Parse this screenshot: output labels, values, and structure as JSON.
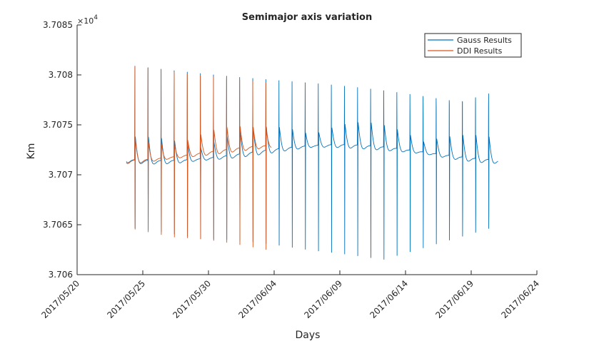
{
  "chart_data": {
    "type": "line",
    "title": "Semimajor axis variation",
    "xlabel": "Days",
    "ylabel": "Km",
    "y_exponent_label": "×10",
    "y_exponent_power": "4",
    "xlim": [
      "2017-05-20",
      "2017-06-24"
    ],
    "ylim": [
      3.706,
      3.7085
    ],
    "x_ticks": [
      {
        "date": "2017-05-20",
        "label": "2017/05/20"
      },
      {
        "date": "2017-05-25",
        "label": "2017/05/25"
      },
      {
        "date": "2017-05-30",
        "label": "2017/05/30"
      },
      {
        "date": "2017-06-04",
        "label": "2017/06/04"
      },
      {
        "date": "2017-06-09",
        "label": "2017/06/09"
      },
      {
        "date": "2017-06-14",
        "label": "2017/06/14"
      },
      {
        "date": "2017-06-19",
        "label": "2017/06/19"
      },
      {
        "date": "2017-06-24",
        "label": "2017/06/24"
      }
    ],
    "y_ticks": [
      {
        "value": 3.706,
        "label": "3.706"
      },
      {
        "value": 3.7065,
        "label": "3.7065"
      },
      {
        "value": 3.707,
        "label": "3.707"
      },
      {
        "value": 3.7075,
        "label": "3.7075"
      },
      {
        "value": 3.708,
        "label": "3.708"
      },
      {
        "value": 3.7085,
        "label": "3.7085"
      }
    ],
    "grid": false,
    "legend_position": "top-right",
    "series": [
      {
        "name": "Gauss Results",
        "color": "#0072BD",
        "start": "2017-05-23T18:00",
        "end": "2017-06-21T01:00",
        "period_days": 0.9973,
        "peak_value": 3.7081,
        "trough_value": 3.70615,
        "mean_value": 3.70722
      },
      {
        "name": "DDI Results",
        "color": "#D95319",
        "start": "2017-05-23T18:00",
        "end": "2017-06-03T19:00",
        "period_days": 0.9973,
        "peak_value": 3.7081,
        "trough_value": 3.70615,
        "mean_value": 3.70722
      }
    ]
  }
}
